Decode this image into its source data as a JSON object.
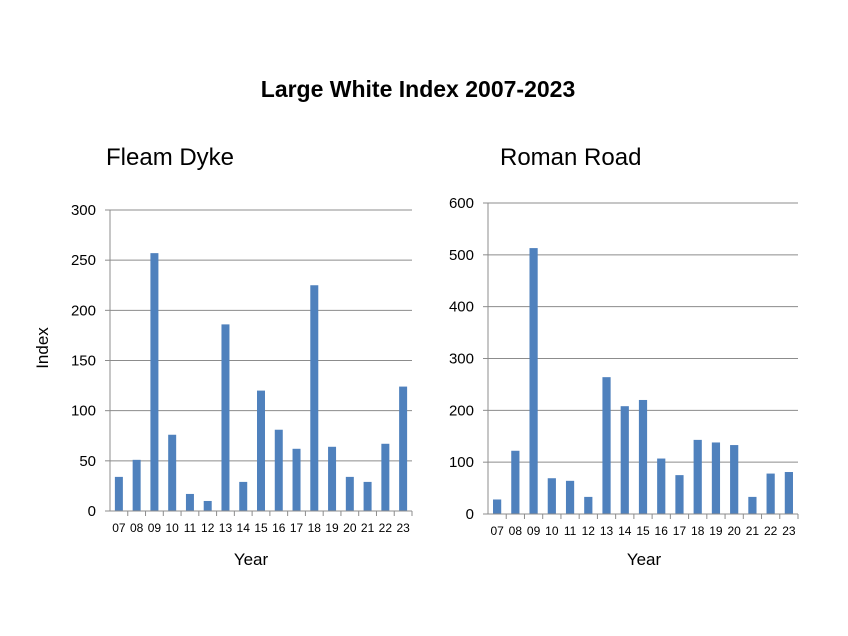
{
  "title": "Large White Index 2007-2023",
  "chart_data": [
    {
      "type": "bar",
      "title": "Fleam Dyke",
      "xlabel": "Year",
      "ylabel": "Index",
      "categories": [
        "07",
        "08",
        "09",
        "10",
        "11",
        "12",
        "13",
        "14",
        "15",
        "16",
        "17",
        "18",
        "19",
        "20",
        "21",
        "22",
        "23"
      ],
      "values": [
        34,
        51,
        257,
        76,
        17,
        10,
        186,
        29,
        120,
        81,
        62,
        225,
        64,
        34,
        29,
        67,
        124
      ],
      "ylim": [
        0,
        300
      ],
      "yticks": [
        0,
        50,
        100,
        150,
        200,
        250,
        300
      ],
      "grid": true,
      "color": "#4f81bd"
    },
    {
      "type": "bar",
      "title": "Roman Road",
      "xlabel": "Year",
      "ylabel": "",
      "categories": [
        "07",
        "08",
        "09",
        "10",
        "11",
        "12",
        "13",
        "14",
        "15",
        "16",
        "17",
        "18",
        "19",
        "20",
        "21",
        "22",
        "23"
      ],
      "values": [
        28,
        122,
        513,
        69,
        64,
        33,
        264,
        208,
        220,
        107,
        75,
        143,
        138,
        133,
        33,
        78,
        81
      ],
      "ylim": [
        0,
        600
      ],
      "yticks": [
        0,
        100,
        200,
        300,
        400,
        500,
        600
      ],
      "grid": true,
      "color": "#4f81bd"
    }
  ]
}
